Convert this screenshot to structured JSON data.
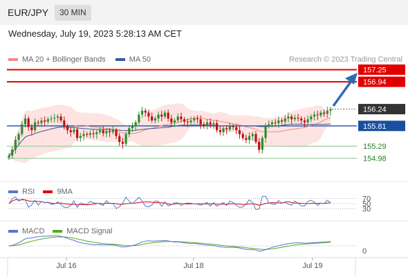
{
  "header": {
    "pair": "EUR/JPY",
    "timeframe": "30 MIN"
  },
  "subtitle": "Wednesday, July 19, 2023 5:28:13 AM CET",
  "legend": {
    "ma20": {
      "label": "MA 20 + Bollinger Bands",
      "color": "#f08a80"
    },
    "ma50": {
      "label": "MA 50",
      "color": "#3a5a9a"
    }
  },
  "credit": "Research © 2023 Trading Central",
  "rsi_legend": {
    "rsi": "RSI",
    "ma9": "9MA"
  },
  "macd_legend": {
    "macd": "MACD",
    "signal": "MACD Signal"
  },
  "colors": {
    "red": "#e00000",
    "blue": "#1a4fa0",
    "green": "#2b7a2b",
    "up": "#2e8b2e",
    "down": "#c01010"
  },
  "chart_data": {
    "type": "candlestick",
    "y_range": [
      154.6,
      157.35
    ],
    "x_labels": [
      "Jul 16",
      "Jul 18",
      "Jul 19"
    ],
    "levels": [
      {
        "label": "157.25",
        "value": 157.25,
        "kind": "resistance"
      },
      {
        "label": "156.94",
        "value": 156.94,
        "kind": "resistance"
      },
      {
        "label": "156.24",
        "value": 156.24,
        "kind": "last"
      },
      {
        "label": "155.81",
        "value": 155.81,
        "kind": "pivot"
      },
      {
        "label": "155.29",
        "value": 155.29,
        "kind": "support"
      },
      {
        "label": "154.98",
        "value": 154.98,
        "kind": "support"
      }
    ],
    "rsi_levels": [
      "70",
      "50",
      "30"
    ],
    "macd_levels": [
      "0"
    ],
    "closes": [
      155.05,
      155.2,
      155.45,
      155.6,
      155.85,
      156.0,
      155.78,
      155.7,
      155.9,
      155.88,
      155.95,
      155.92,
      155.98,
      156.0,
      156.02,
      156.05,
      155.95,
      155.8,
      155.7,
      155.65,
      155.72,
      155.5,
      155.55,
      155.6,
      155.58,
      155.62,
      155.6,
      155.65,
      155.7,
      155.62,
      155.68,
      155.65,
      155.7,
      155.55,
      155.4,
      155.35,
      155.6,
      155.75,
      155.8,
      155.9,
      156.1,
      156.2,
      156.15,
      156.05,
      155.95,
      156.0,
      156.1,
      156.05,
      156.15,
      156.0,
      155.9,
      155.95,
      156.05,
      155.98,
      155.92,
      155.9,
      155.95,
      156.0,
      155.98,
      155.85,
      155.8,
      155.9,
      155.85,
      155.88,
      155.7,
      155.65,
      155.75,
      155.72,
      155.8,
      155.78,
      155.7,
      155.6,
      155.5,
      155.45,
      155.55,
      155.6,
      155.4,
      155.2,
      155.5,
      155.8,
      155.85,
      155.9,
      155.88,
      155.95,
      155.92,
      156.0,
      156.05,
      155.98,
      156.02,
      156.0,
      155.95,
      155.9,
      155.98,
      156.05,
      156.1,
      156.08,
      156.15,
      156.12,
      156.2,
      156.24
    ]
  }
}
